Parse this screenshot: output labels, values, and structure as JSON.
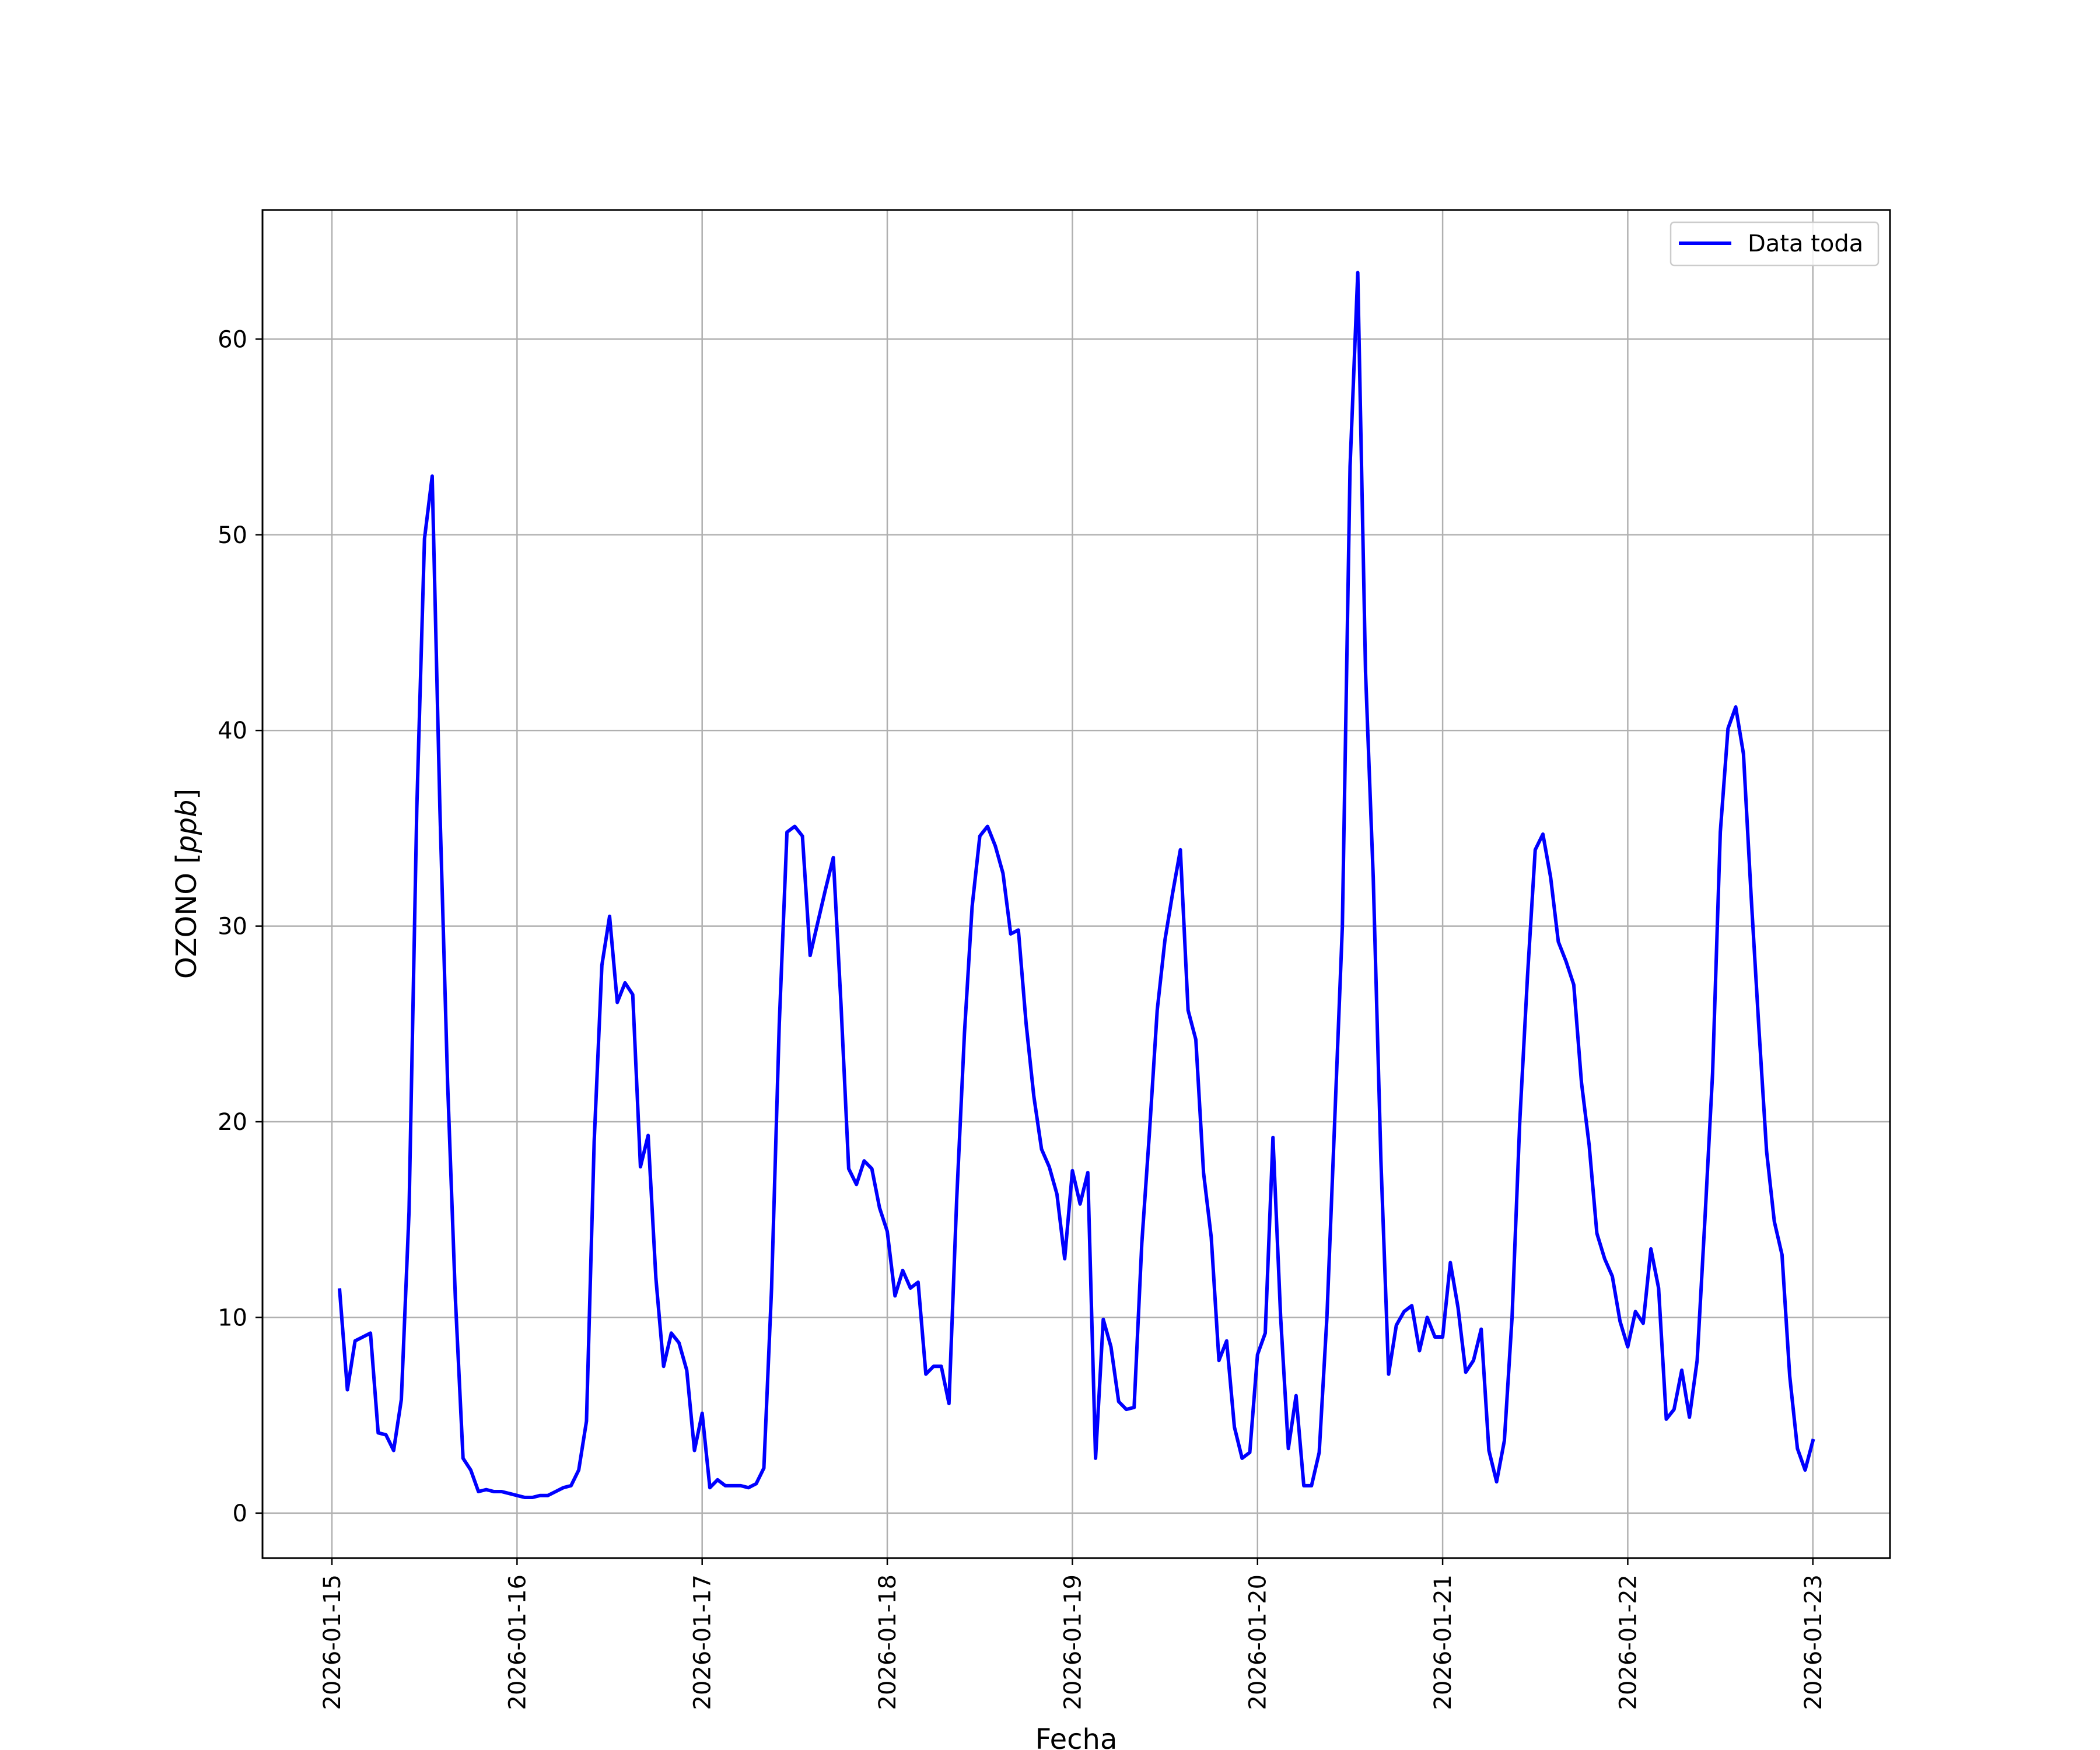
{
  "chart_data": {
    "type": "line",
    "xlabel": "Fecha",
    "ylabel": "OZONO [ppb]",
    "ylabel_parts": {
      "name": "OZONO ",
      "unit": "ppb"
    },
    "x_ticks": [
      "2026-01-15",
      "2026-01-16",
      "2026-01-17",
      "2026-01-18",
      "2026-01-19",
      "2026-01-20",
      "2026-01-21",
      "2026-01-22",
      "2026-01-23"
    ],
    "y_ticks": [
      "0",
      "10",
      "20",
      "30",
      "40",
      "50",
      "60"
    ],
    "xlim": [
      "2026-01-14 15:00",
      "2026-01-23 10:00"
    ],
    "ylim": [
      -2.3,
      66.6
    ],
    "grid": true,
    "legend": {
      "placement": "top-right",
      "entries": [
        "Data toda"
      ]
    },
    "series": [
      {
        "name": "Data toda",
        "color": "#0000ff",
        "x": [
          "2026-01-15 01:00",
          "2026-01-15 02:00",
          "2026-01-15 03:00",
          "2026-01-15 04:00",
          "2026-01-15 05:00",
          "2026-01-15 06:00",
          "2026-01-15 07:00",
          "2026-01-15 08:00",
          "2026-01-15 09:00",
          "2026-01-15 10:00",
          "2026-01-15 11:00",
          "2026-01-15 12:00",
          "2026-01-15 13:00",
          "2026-01-15 14:00",
          "2026-01-15 15:00",
          "2026-01-15 16:00",
          "2026-01-15 17:00",
          "2026-01-15 18:00",
          "2026-01-15 19:00",
          "2026-01-15 20:00",
          "2026-01-15 21:00",
          "2026-01-15 22:00",
          "2026-01-15 23:00",
          "2026-01-16 00:00",
          "2026-01-16 01:00",
          "2026-01-16 02:00",
          "2026-01-16 03:00",
          "2026-01-16 04:00",
          "2026-01-16 05:00",
          "2026-01-16 06:00",
          "2026-01-16 07:00",
          "2026-01-16 08:00",
          "2026-01-16 09:00",
          "2026-01-16 10:00",
          "2026-01-16 11:00",
          "2026-01-16 12:00",
          "2026-01-16 13:00",
          "2026-01-16 14:00",
          "2026-01-16 15:00",
          "2026-01-16 16:00",
          "2026-01-16 17:00",
          "2026-01-16 18:00",
          "2026-01-16 19:00",
          "2026-01-16 20:00",
          "2026-01-16 21:00",
          "2026-01-16 22:00",
          "2026-01-16 23:00",
          "2026-01-17 00:00",
          "2026-01-17 01:00",
          "2026-01-17 02:00",
          "2026-01-17 03:00",
          "2026-01-17 04:00",
          "2026-01-17 05:00",
          "2026-01-17 06:00",
          "2026-01-17 07:00",
          "2026-01-17 08:00",
          "2026-01-17 09:00",
          "2026-01-17 10:00",
          "2026-01-17 11:00",
          "2026-01-17 12:00",
          "2026-01-17 13:00",
          "2026-01-17 14:00",
          "2026-01-17 15:00",
          "2026-01-17 16:00",
          "2026-01-17 17:00",
          "2026-01-17 18:00",
          "2026-01-17 19:00",
          "2026-01-17 20:00",
          "2026-01-17 21:00",
          "2026-01-17 22:00",
          "2026-01-17 23:00",
          "2026-01-18 00:00",
          "2026-01-18 01:00",
          "2026-01-18 02:00",
          "2026-01-18 03:00",
          "2026-01-18 04:00",
          "2026-01-18 05:00",
          "2026-01-18 06:00",
          "2026-01-18 07:00",
          "2026-01-18 08:00",
          "2026-01-18 09:00",
          "2026-01-18 10:00",
          "2026-01-18 11:00",
          "2026-01-18 12:00",
          "2026-01-18 13:00",
          "2026-01-18 14:00",
          "2026-01-18 15:00",
          "2026-01-18 16:00",
          "2026-01-18 17:00",
          "2026-01-18 18:00",
          "2026-01-18 19:00",
          "2026-01-18 20:00",
          "2026-01-18 21:00",
          "2026-01-18 22:00",
          "2026-01-18 23:00",
          "2026-01-19 00:00",
          "2026-01-19 01:00",
          "2026-01-19 02:00",
          "2026-01-19 03:00",
          "2026-01-19 04:00",
          "2026-01-19 05:00",
          "2026-01-19 06:00",
          "2026-01-19 07:00",
          "2026-01-19 08:00",
          "2026-01-19 09:00",
          "2026-01-19 10:00",
          "2026-01-19 11:00",
          "2026-01-19 12:00",
          "2026-01-19 13:00",
          "2026-01-19 14:00",
          "2026-01-19 15:00",
          "2026-01-19 16:00",
          "2026-01-19 17:00",
          "2026-01-19 18:00",
          "2026-01-19 19:00",
          "2026-01-19 20:00",
          "2026-01-19 21:00",
          "2026-01-19 22:00",
          "2026-01-19 23:00",
          "2026-01-20 00:00",
          "2026-01-20 01:00",
          "2026-01-20 02:00",
          "2026-01-20 03:00",
          "2026-01-20 04:00",
          "2026-01-20 05:00",
          "2026-01-20 06:00",
          "2026-01-20 07:00",
          "2026-01-20 08:00",
          "2026-01-20 09:00",
          "2026-01-20 10:00",
          "2026-01-20 11:00",
          "2026-01-20 12:00",
          "2026-01-20 13:00",
          "2026-01-20 14:00",
          "2026-01-20 15:00",
          "2026-01-20 16:00",
          "2026-01-20 17:00",
          "2026-01-20 18:00",
          "2026-01-20 19:00",
          "2026-01-20 20:00",
          "2026-01-20 21:00",
          "2026-01-20 22:00",
          "2026-01-20 23:00",
          "2026-01-21 00:00",
          "2026-01-21 01:00",
          "2026-01-21 02:00",
          "2026-01-21 03:00",
          "2026-01-21 04:00",
          "2026-01-21 05:00",
          "2026-01-21 06:00",
          "2026-01-21 07:00",
          "2026-01-21 08:00",
          "2026-01-21 09:00",
          "2026-01-21 10:00",
          "2026-01-21 11:00",
          "2026-01-21 12:00",
          "2026-01-21 13:00",
          "2026-01-21 14:00",
          "2026-01-21 15:00",
          "2026-01-21 16:00",
          "2026-01-21 17:00",
          "2026-01-21 18:00",
          "2026-01-21 19:00",
          "2026-01-21 20:00",
          "2026-01-21 21:00",
          "2026-01-21 22:00",
          "2026-01-21 23:00",
          "2026-01-22 00:00",
          "2026-01-22 01:00",
          "2026-01-22 02:00",
          "2026-01-22 03:00",
          "2026-01-22 04:00",
          "2026-01-22 05:00",
          "2026-01-22 06:00",
          "2026-01-22 07:00",
          "2026-01-22 08:00",
          "2026-01-22 09:00",
          "2026-01-22 10:00",
          "2026-01-22 11:00",
          "2026-01-22 12:00",
          "2026-01-22 13:00",
          "2026-01-22 14:00",
          "2026-01-22 15:00",
          "2026-01-22 16:00",
          "2026-01-22 17:00",
          "2026-01-22 18:00",
          "2026-01-22 19:00",
          "2026-01-22 20:00",
          "2026-01-22 21:00",
          "2026-01-22 22:00",
          "2026-01-22 23:00",
          "2026-01-23 00:00"
        ],
        "values": [
          11.4,
          6.3,
          8.8,
          9.0,
          9.2,
          4.1,
          4.0,
          3.2,
          5.8,
          15.4,
          36.0,
          49.8,
          53.0,
          36.0,
          22.0,
          11.0,
          2.8,
          2.2,
          1.1,
          1.2,
          1.1,
          1.1,
          1.0,
          0.9,
          0.8,
          0.8,
          0.9,
          0.9,
          1.1,
          1.3,
          1.4,
          2.2,
          4.7,
          19.0,
          28.0,
          30.5,
          26.1,
          27.1,
          26.5,
          17.7,
          19.3,
          12.0,
          7.5,
          9.2,
          8.7,
          7.3,
          3.2,
          5.1,
          1.3,
          1.7,
          1.4,
          1.4,
          1.4,
          1.3,
          1.5,
          2.3,
          11.5,
          25.0,
          34.8,
          35.1,
          34.6,
          28.5,
          30.2,
          31.9,
          33.5,
          26.0,
          17.6,
          16.8,
          18.0,
          17.6,
          15.6,
          14.4,
          11.1,
          12.4,
          11.5,
          11.8,
          7.1,
          7.5,
          7.5,
          5.6,
          16.0,
          24.5,
          31.0,
          34.6,
          35.1,
          34.1,
          32.7,
          29.6,
          29.8,
          25.0,
          21.3,
          18.6,
          17.7,
          16.3,
          13.0,
          17.5,
          15.8,
          17.4,
          2.8,
          9.9,
          8.5,
          5.7,
          5.3,
          5.4,
          13.8,
          19.5,
          25.7,
          29.3,
          31.7,
          33.9,
          25.7,
          24.2,
          17.4,
          14.1,
          7.8,
          8.8,
          4.4,
          2.8,
          3.1,
          8.1,
          9.2,
          19.2,
          10.0,
          3.3,
          6.0,
          1.4,
          1.4,
          3.1,
          10.0,
          20.0,
          30.0,
          53.5,
          63.4,
          43.0,
          32.5,
          18.0,
          7.1,
          9.6,
          10.3,
          10.6,
          8.3,
          10.0,
          9.0,
          9.0,
          12.8,
          10.5,
          7.2,
          7.8,
          9.4,
          3.2,
          1.6,
          3.7,
          10.0,
          20.0,
          27.4,
          33.9,
          34.7,
          32.5,
          29.2,
          28.2,
          27.0,
          22.0,
          18.8,
          14.3,
          13.0,
          12.1,
          9.8,
          8.5,
          10.3,
          9.7,
          13.5,
          11.5,
          4.8,
          5.3,
          7.3,
          4.9,
          7.8,
          15.0,
          22.5,
          34.8,
          40.1,
          41.2,
          38.8,
          31.5,
          24.8,
          18.5,
          14.9,
          13.2,
          7.0,
          3.3,
          2.2,
          3.7
        ]
      }
    ]
  }
}
